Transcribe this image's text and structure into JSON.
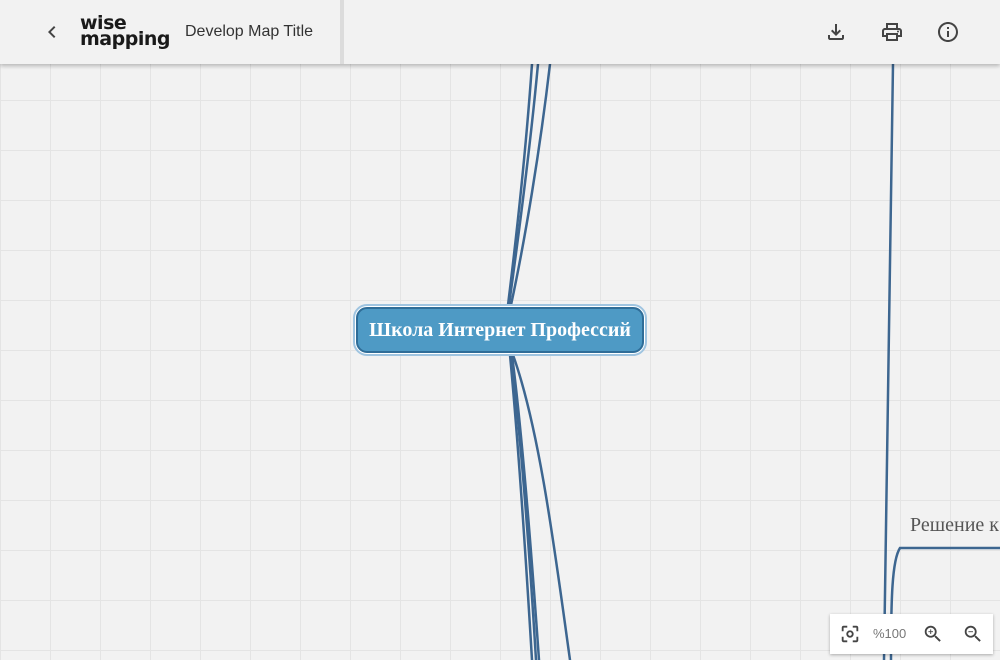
{
  "header": {
    "logo_line1": "wise",
    "logo_line2": "mapping",
    "map_title": "Develop Map Title",
    "back_icon": "chevron-left-icon",
    "actions": [
      {
        "name": "download",
        "icon": "download-icon"
      },
      {
        "name": "print",
        "icon": "printer-icon"
      },
      {
        "name": "info",
        "icon": "info-icon"
      }
    ]
  },
  "mindmap": {
    "central_topic": "Школа Интернет Профессий",
    "side_topic": "Решение к",
    "connection_color": "#3d6690",
    "central_fill": "#4e9ac5",
    "central_border": "#2f6d98"
  },
  "zoom": {
    "level_text": "%100",
    "fit_icon": "center-focus-icon",
    "zoom_in_icon": "zoom-in-icon",
    "zoom_out_icon": "zoom-out-icon"
  },
  "colors": {
    "canvas_bg": "#f2f2f2",
    "grid_line": "#e4e4e4",
    "header_bg": "#f2f2f2",
    "icon": "#444444"
  }
}
